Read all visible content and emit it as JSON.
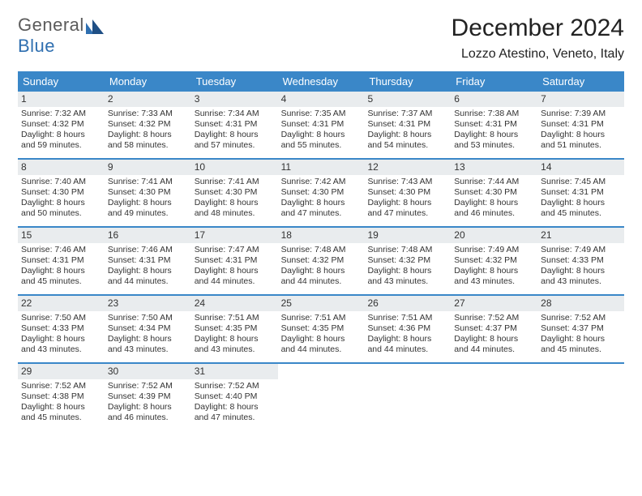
{
  "logo": {
    "word1": "General",
    "word2": "Blue"
  },
  "header": {
    "title": "December 2024",
    "location": "Lozzo Atestino, Veneto, Italy"
  },
  "colors": {
    "header_bg": "#3a87c8",
    "header_text": "#ffffff",
    "daynum_bg": "#e9ecee",
    "week_divider": "#3a87c8",
    "logo_gray": "#5b5b5b",
    "logo_blue": "#2f6fb0"
  },
  "weekdays": [
    "Sunday",
    "Monday",
    "Tuesday",
    "Wednesday",
    "Thursday",
    "Friday",
    "Saturday"
  ],
  "weeks": [
    [
      {
        "n": "1",
        "sr": "Sunrise: 7:32 AM",
        "ss": "Sunset: 4:32 PM",
        "dl": "Daylight: 8 hours and 59 minutes."
      },
      {
        "n": "2",
        "sr": "Sunrise: 7:33 AM",
        "ss": "Sunset: 4:32 PM",
        "dl": "Daylight: 8 hours and 58 minutes."
      },
      {
        "n": "3",
        "sr": "Sunrise: 7:34 AM",
        "ss": "Sunset: 4:31 PM",
        "dl": "Daylight: 8 hours and 57 minutes."
      },
      {
        "n": "4",
        "sr": "Sunrise: 7:35 AM",
        "ss": "Sunset: 4:31 PM",
        "dl": "Daylight: 8 hours and 55 minutes."
      },
      {
        "n": "5",
        "sr": "Sunrise: 7:37 AM",
        "ss": "Sunset: 4:31 PM",
        "dl": "Daylight: 8 hours and 54 minutes."
      },
      {
        "n": "6",
        "sr": "Sunrise: 7:38 AM",
        "ss": "Sunset: 4:31 PM",
        "dl": "Daylight: 8 hours and 53 minutes."
      },
      {
        "n": "7",
        "sr": "Sunrise: 7:39 AM",
        "ss": "Sunset: 4:31 PM",
        "dl": "Daylight: 8 hours and 51 minutes."
      }
    ],
    [
      {
        "n": "8",
        "sr": "Sunrise: 7:40 AM",
        "ss": "Sunset: 4:30 PM",
        "dl": "Daylight: 8 hours and 50 minutes."
      },
      {
        "n": "9",
        "sr": "Sunrise: 7:41 AM",
        "ss": "Sunset: 4:30 PM",
        "dl": "Daylight: 8 hours and 49 minutes."
      },
      {
        "n": "10",
        "sr": "Sunrise: 7:41 AM",
        "ss": "Sunset: 4:30 PM",
        "dl": "Daylight: 8 hours and 48 minutes."
      },
      {
        "n": "11",
        "sr": "Sunrise: 7:42 AM",
        "ss": "Sunset: 4:30 PM",
        "dl": "Daylight: 8 hours and 47 minutes."
      },
      {
        "n": "12",
        "sr": "Sunrise: 7:43 AM",
        "ss": "Sunset: 4:30 PM",
        "dl": "Daylight: 8 hours and 47 minutes."
      },
      {
        "n": "13",
        "sr": "Sunrise: 7:44 AM",
        "ss": "Sunset: 4:30 PM",
        "dl": "Daylight: 8 hours and 46 minutes."
      },
      {
        "n": "14",
        "sr": "Sunrise: 7:45 AM",
        "ss": "Sunset: 4:31 PM",
        "dl": "Daylight: 8 hours and 45 minutes."
      }
    ],
    [
      {
        "n": "15",
        "sr": "Sunrise: 7:46 AM",
        "ss": "Sunset: 4:31 PM",
        "dl": "Daylight: 8 hours and 45 minutes."
      },
      {
        "n": "16",
        "sr": "Sunrise: 7:46 AM",
        "ss": "Sunset: 4:31 PM",
        "dl": "Daylight: 8 hours and 44 minutes."
      },
      {
        "n": "17",
        "sr": "Sunrise: 7:47 AM",
        "ss": "Sunset: 4:31 PM",
        "dl": "Daylight: 8 hours and 44 minutes."
      },
      {
        "n": "18",
        "sr": "Sunrise: 7:48 AM",
        "ss": "Sunset: 4:32 PM",
        "dl": "Daylight: 8 hours and 44 minutes."
      },
      {
        "n": "19",
        "sr": "Sunrise: 7:48 AM",
        "ss": "Sunset: 4:32 PM",
        "dl": "Daylight: 8 hours and 43 minutes."
      },
      {
        "n": "20",
        "sr": "Sunrise: 7:49 AM",
        "ss": "Sunset: 4:32 PM",
        "dl": "Daylight: 8 hours and 43 minutes."
      },
      {
        "n": "21",
        "sr": "Sunrise: 7:49 AM",
        "ss": "Sunset: 4:33 PM",
        "dl": "Daylight: 8 hours and 43 minutes."
      }
    ],
    [
      {
        "n": "22",
        "sr": "Sunrise: 7:50 AM",
        "ss": "Sunset: 4:33 PM",
        "dl": "Daylight: 8 hours and 43 minutes."
      },
      {
        "n": "23",
        "sr": "Sunrise: 7:50 AM",
        "ss": "Sunset: 4:34 PM",
        "dl": "Daylight: 8 hours and 43 minutes."
      },
      {
        "n": "24",
        "sr": "Sunrise: 7:51 AM",
        "ss": "Sunset: 4:35 PM",
        "dl": "Daylight: 8 hours and 43 minutes."
      },
      {
        "n": "25",
        "sr": "Sunrise: 7:51 AM",
        "ss": "Sunset: 4:35 PM",
        "dl": "Daylight: 8 hours and 44 minutes."
      },
      {
        "n": "26",
        "sr": "Sunrise: 7:51 AM",
        "ss": "Sunset: 4:36 PM",
        "dl": "Daylight: 8 hours and 44 minutes."
      },
      {
        "n": "27",
        "sr": "Sunrise: 7:52 AM",
        "ss": "Sunset: 4:37 PM",
        "dl": "Daylight: 8 hours and 44 minutes."
      },
      {
        "n": "28",
        "sr": "Sunrise: 7:52 AM",
        "ss": "Sunset: 4:37 PM",
        "dl": "Daylight: 8 hours and 45 minutes."
      }
    ],
    [
      {
        "n": "29",
        "sr": "Sunrise: 7:52 AM",
        "ss": "Sunset: 4:38 PM",
        "dl": "Daylight: 8 hours and 45 minutes."
      },
      {
        "n": "30",
        "sr": "Sunrise: 7:52 AM",
        "ss": "Sunset: 4:39 PM",
        "dl": "Daylight: 8 hours and 46 minutes."
      },
      {
        "n": "31",
        "sr": "Sunrise: 7:52 AM",
        "ss": "Sunset: 4:40 PM",
        "dl": "Daylight: 8 hours and 47 minutes."
      },
      null,
      null,
      null,
      null
    ]
  ]
}
